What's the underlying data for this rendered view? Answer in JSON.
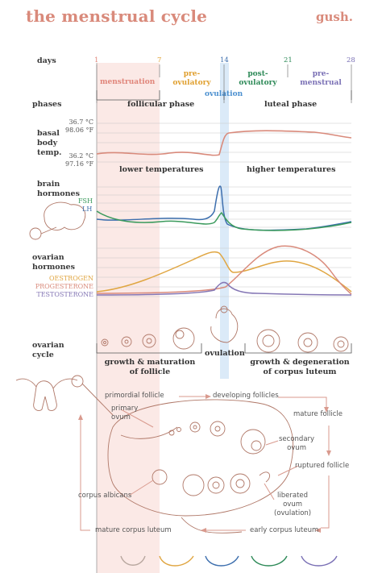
{
  "header": {
    "title": "the menstrual cycle",
    "brand": "gush."
  },
  "colors": {
    "accent": "#d98a7b",
    "menstruation": "#e0857a",
    "pre_ovulatory": "#e0a030",
    "ovulation": "#4a8fcf",
    "post_ovulatory": "#2e8a58",
    "pre_menstrual": "#7a70b5",
    "fsh": "#3a9a5c",
    "lh": "#3d6fae",
    "oestrogen": "#e0a642",
    "progesterone": "#d98a7b",
    "testosterone": "#8577b5"
  },
  "rows": {
    "days": "days",
    "phases": "phases",
    "basal": [
      "basal",
      "body",
      "temp."
    ],
    "brain": [
      "brain",
      "hormones"
    ],
    "ovarian_h": [
      "ovarian",
      "hormones"
    ],
    "ovarian_c": [
      "ovarian",
      "cycle"
    ]
  },
  "days": {
    "d1": "1",
    "d7": "7",
    "d14": "14",
    "d21": "21",
    "d28": "28"
  },
  "phases": {
    "menstruation": "menstruation",
    "pre_ovulatory": [
      "pre-",
      "ovulatory"
    ],
    "ovulation": "ovulation",
    "post_ovulatory": [
      "post-",
      "ovulatory"
    ],
    "pre_menstrual": [
      "pre-",
      "menstrual"
    ],
    "follicular": "follicular phase",
    "luteal": "luteal phase"
  },
  "temperature": {
    "high_c": "36.7 °C",
    "high_f": "98.06 °F",
    "low_c": "36.2 °C",
    "low_f": "97.16 °F",
    "lower": "lower temperatures",
    "higher": "higher temperatures"
  },
  "brain_legend": {
    "fsh": "FSH",
    "lh": "LH"
  },
  "ovarian_legend": {
    "oestrogen": "OESTROGEN",
    "progesterone": "PROGESTERONE",
    "testosterone": "TESTOSTERONE"
  },
  "ovarian_cycle": {
    "growth": [
      "growth & maturation",
      "of follicle"
    ],
    "ovulation": "ovulation",
    "degeneration": [
      "growth & degeneration",
      "of corpus luteum"
    ]
  },
  "diagram_labels": {
    "primordial": "primordial follicle",
    "developing": "developing follicles",
    "primary_ovum": [
      "primary",
      "ovum"
    ],
    "mature": "mature follicle",
    "secondary_ovum": [
      "secondary",
      "ovum"
    ],
    "ruptured": "ruptured follicle",
    "corpus_albicans": "corpus albicans",
    "liberated": [
      "liberated",
      "ovum",
      "(ovulation)"
    ],
    "mature_corpus": "mature corpus luteum",
    "early_corpus": "early corpus luteum"
  }
}
